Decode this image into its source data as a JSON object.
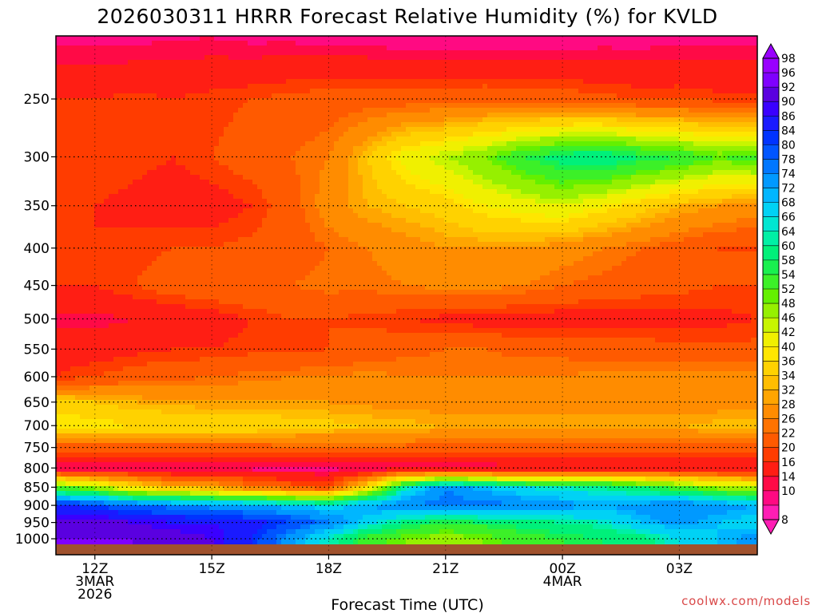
{
  "chart_data": {
    "type": "heatmap",
    "title": "2026030311 HRRR Forecast Relative Humidity (%) for KVLD",
    "xlabel": "Forecast Time (UTC)",
    "ylabel": "",
    "credit": "coolwx.com/models",
    "x_ticks": [
      {
        "hour": 0,
        "lines": [
          "12Z",
          "3MAR",
          "2026"
        ]
      },
      {
        "hour": 3,
        "lines": [
          "15Z"
        ]
      },
      {
        "hour": 6,
        "lines": [
          "18Z"
        ]
      },
      {
        "hour": 9,
        "lines": [
          "21Z"
        ]
      },
      {
        "hour": 12,
        "lines": [
          "00Z",
          "4MAR"
        ]
      },
      {
        "hour": 15,
        "lines": [
          "03Z"
        ]
      }
    ],
    "x_range_hours": [
      -1,
      17
    ],
    "y_ticks": [
      "250",
      "300",
      "350",
      "400",
      "450",
      "500",
      "550",
      "600",
      "650",
      "700",
      "750",
      "800",
      "850",
      "900",
      "950",
      "1000"
    ],
    "y_range_hpa": [
      1013,
      200
    ],
    "colorbar_labels": [
      "98",
      "96",
      "92",
      "90",
      "86",
      "84",
      "80",
      "78",
      "74",
      "72",
      "68",
      "66",
      "64",
      "60",
      "58",
      "54",
      "52",
      "48",
      "46",
      "42",
      "40",
      "36",
      "34",
      "32",
      "28",
      "26",
      "22",
      "20",
      "16",
      "14",
      "10",
      "8"
    ],
    "colorbar_colors": [
      "#9900ff",
      "#7f00ff",
      "#5a00e0",
      "#3a00ff",
      "#1a1aff",
      "#0033ff",
      "#0055ff",
      "#0077ff",
      "#0099ff",
      "#00b6ff",
      "#00d2f5",
      "#00e6d2",
      "#00f0a5",
      "#00f07a",
      "#19f04f",
      "#3cf028",
      "#64f000",
      "#96f000",
      "#c8f500",
      "#f0f000",
      "#ffe600",
      "#ffd200",
      "#ffbe00",
      "#ffa500",
      "#ff8c00",
      "#ff7300",
      "#ff5a00",
      "#ff3c00",
      "#ff1e14",
      "#ff0a46",
      "#ff0a82",
      "#ff1eb4"
    ],
    "ground_color": "#a0522d",
    "series_note": "RH (%) by forecast hour (columns, hours -1..17) and pressure level (rows)",
    "hours": [
      -1,
      0,
      1,
      2,
      3,
      4,
      5,
      6,
      7,
      8,
      9,
      10,
      11,
      12,
      13,
      14,
      15,
      16,
      17
    ],
    "pressure_levels": [
      200,
      250,
      300,
      350,
      400,
      450,
      500,
      550,
      600,
      650,
      700,
      750,
      800,
      850,
      900,
      950,
      1000
    ],
    "rh_values": [
      [
        12,
        12,
        12,
        13,
        13,
        12,
        12,
        11,
        11,
        10,
        10,
        10,
        10,
        10,
        11,
        11,
        12,
        12,
        12
      ],
      [
        20,
        20,
        21,
        20,
        21,
        22,
        23,
        24,
        24,
        24,
        24,
        25,
        24,
        24,
        23,
        22,
        22,
        21,
        21
      ],
      [
        22,
        22,
        21,
        20,
        22,
        24,
        26,
        28,
        36,
        44,
        48,
        52,
        58,
        62,
        64,
        60,
        58,
        54,
        56
      ],
      [
        21,
        20,
        19,
        18,
        18,
        20,
        24,
        30,
        34,
        36,
        38,
        42,
        44,
        46,
        42,
        38,
        34,
        32,
        30
      ],
      [
        20,
        20,
        21,
        22,
        22,
        23,
        24,
        26,
        28,
        30,
        32,
        32,
        32,
        30,
        28,
        26,
        24,
        22,
        22
      ],
      [
        20,
        20,
        22,
        24,
        25,
        26,
        26,
        27,
        27,
        28,
        29,
        29,
        28,
        26,
        25,
        24,
        23,
        22,
        22
      ],
      [
        15,
        15,
        16,
        17,
        18,
        20,
        22,
        22,
        21,
        20,
        19,
        18,
        18,
        18,
        18,
        18,
        19,
        19,
        20
      ],
      [
        18,
        18,
        19,
        20,
        20,
        21,
        21,
        22,
        24,
        25,
        26,
        26,
        25,
        25,
        24,
        24,
        23,
        23,
        23
      ],
      [
        20,
        22,
        24,
        25,
        26,
        27,
        28,
        28,
        29,
        28,
        28,
        28,
        28,
        28,
        29,
        29,
        30,
        30,
        30
      ],
      [
        38,
        36,
        34,
        33,
        32,
        32,
        32,
        32,
        31,
        31,
        30,
        30,
        30,
        30,
        30,
        30,
        30,
        30,
        30
      ],
      [
        42,
        42,
        40,
        40,
        40,
        40,
        38,
        37,
        36,
        35,
        34,
        34,
        34,
        34,
        34,
        34,
        34,
        35,
        35
      ],
      [
        24,
        24,
        24,
        24,
        24,
        24,
        25,
        25,
        25,
        25,
        24,
        24,
        24,
        24,
        24,
        24,
        24,
        24,
        24
      ],
      [
        13,
        13,
        13,
        13,
        13,
        13,
        13,
        13,
        13,
        14,
        14,
        14,
        15,
        15,
        15,
        15,
        15,
        15,
        15
      ],
      [
        55,
        50,
        40,
        35,
        32,
        28,
        24,
        22,
        40,
        66,
        78,
        72,
        68,
        66,
        64,
        60,
        55,
        50,
        48
      ],
      [
        86,
        84,
        80,
        78,
        76,
        74,
        72,
        70,
        74,
        78,
        80,
        80,
        78,
        76,
        74,
        76,
        78,
        76,
        74
      ],
      [
        94,
        94,
        92,
        90,
        90,
        88,
        84,
        78,
        70,
        62,
        58,
        60,
        62,
        64,
        66,
        72,
        76,
        72,
        70
      ],
      [
        96,
        96,
        96,
        94,
        92,
        86,
        76,
        66,
        56,
        52,
        50,
        52,
        56,
        58,
        60,
        62,
        68,
        72,
        76
      ]
    ]
  }
}
